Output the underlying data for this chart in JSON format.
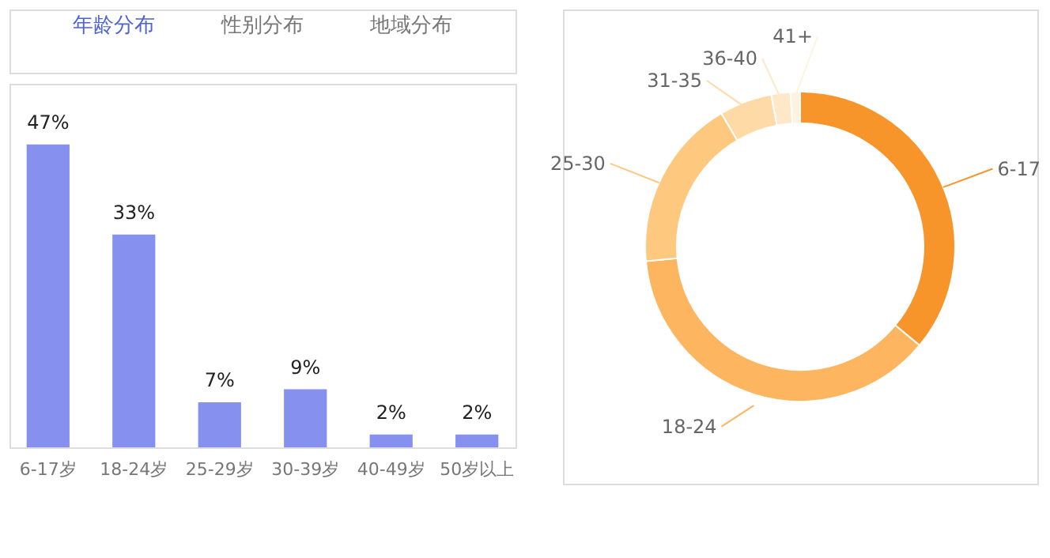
{
  "chart_data": [
    {
      "type": "bar",
      "annotations": [
        "年龄分布",
        "性别分布",
        "地域分布"
      ],
      "categories": [
        "6-17岁",
        "18-24岁",
        "25-29岁",
        "30-39岁",
        "40-49岁",
        "50岁以上"
      ],
      "values": [
        47,
        33,
        7,
        9,
        2,
        2
      ],
      "value_labels": [
        "47%",
        "33%",
        "7%",
        "9%",
        "2%",
        "2%"
      ],
      "color": "#8690ee",
      "grid": false,
      "legend": false
    },
    {
      "type": "donut",
      "categories": [
        "6-17",
        "18-24",
        "25-30",
        "31-35",
        "36-40",
        "41+"
      ],
      "values": [
        36,
        37.5,
        18,
        5.5,
        2,
        1
      ],
      "colors": [
        "#f7952b",
        "#fdb55f",
        "#fec97f",
        "#fedaa6",
        "#fee8c8",
        "#fff3e0"
      ],
      "legend": false
    }
  ]
}
